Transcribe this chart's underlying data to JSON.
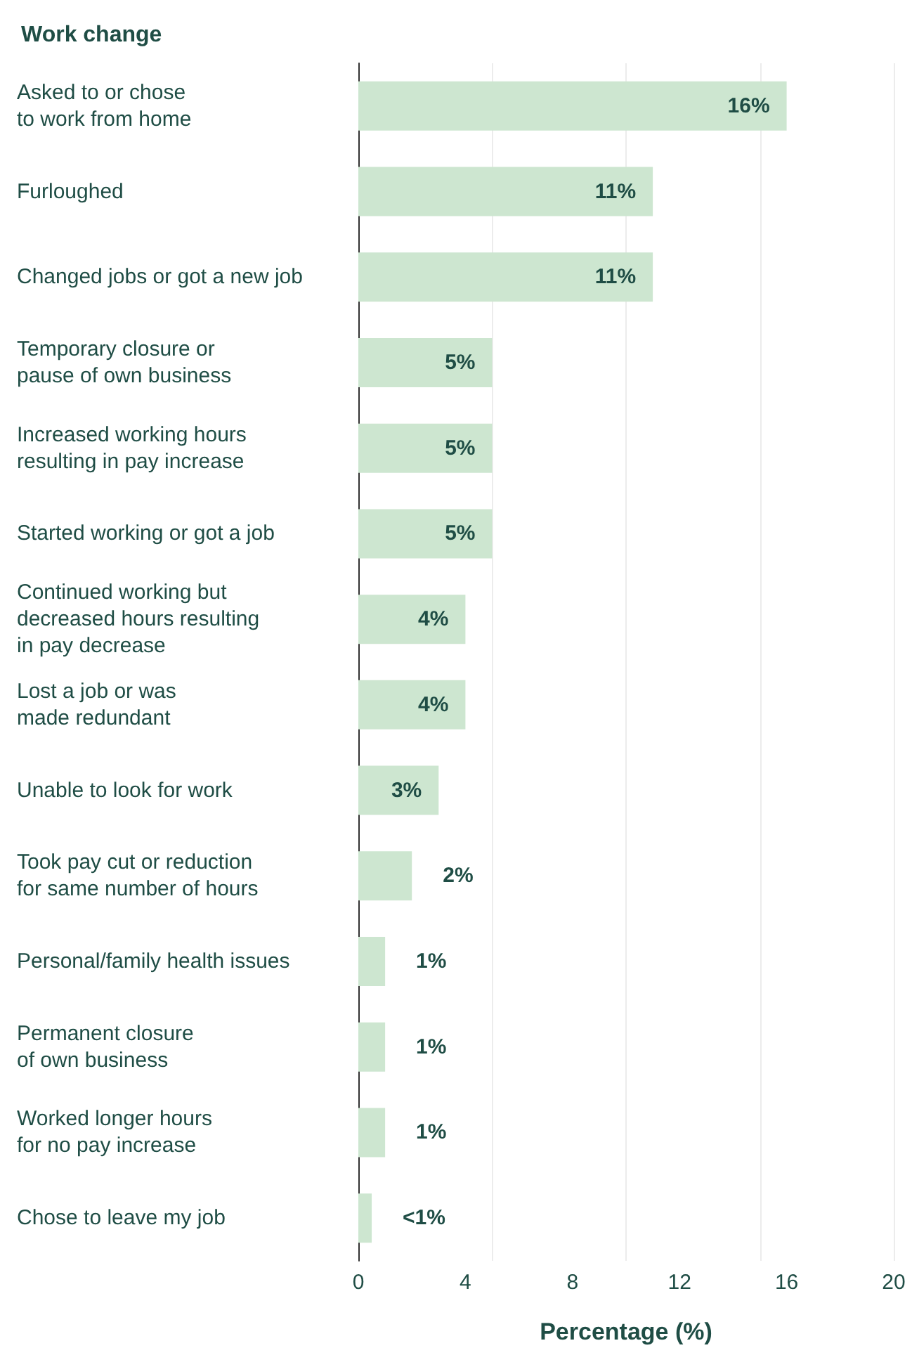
{
  "chart_data": {
    "type": "bar",
    "orientation": "horizontal",
    "title": "Work change",
    "xlabel": "Percentage (%)",
    "categories": [
      "Asked to or chose\nto work from home",
      "Furloughed",
      "Changed jobs or got a new job",
      "Temporary closure or\npause of own business",
      "Increased working hours\nresulting in pay increase",
      "Started working or got a job",
      "Continued working but\ndecreased hours resulting\nin pay decrease",
      "Lost a job or was\nmade redundant",
      "Unable to look for work",
      "Took pay cut or reduction\nfor same number of hours",
      "Personal/family health issues",
      "Permanent closure\nof own business",
      "Worked longer hours\nfor no pay increase",
      "Chose to leave my job"
    ],
    "values": [
      16,
      11,
      11,
      5,
      5,
      5,
      4,
      4,
      3,
      2,
      1,
      1,
      1,
      0.5
    ],
    "value_labels": [
      "16%",
      "11%",
      "11%",
      "5%",
      "5%",
      "5%",
      "4%",
      "4%",
      "3%",
      "2%",
      "1%",
      "1%",
      "1%",
      "<1%"
    ],
    "color": "#cde6d0",
    "xlim": [
      0,
      20
    ],
    "xticks": [
      0,
      4,
      8,
      12,
      16,
      20
    ],
    "grid": "x"
  }
}
